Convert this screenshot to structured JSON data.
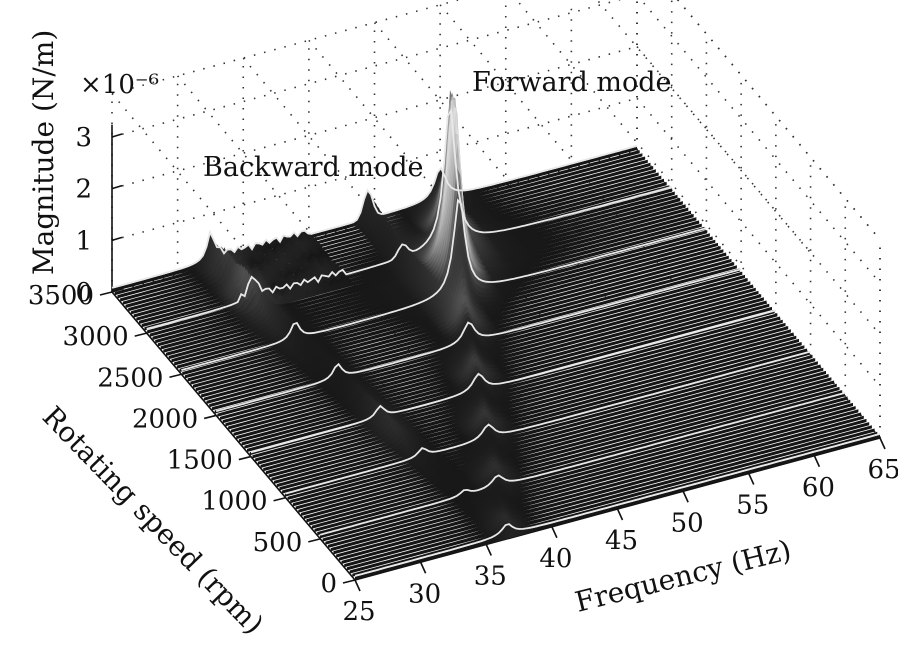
{
  "chart_data": {
    "type": "waterfall-3d-surface",
    "title": "",
    "x_axis": {
      "label": "Frequency (Hz)",
      "range": [
        25,
        65
      ],
      "ticks": [
        "25",
        "30",
        "35",
        "40",
        "45",
        "50",
        "55",
        "60",
        "65"
      ]
    },
    "y_axis": {
      "label": "Rotating speed (rpm)",
      "range": [
        0,
        3500
      ],
      "ticks": [
        "0",
        "500",
        "1000",
        "1500",
        "2000",
        "2500",
        "3000",
        "3500"
      ]
    },
    "z_axis": {
      "label": "Magnitude (N/m)",
      "scale_label": "×10⁻⁶",
      "range": [
        0,
        3
      ],
      "ticks": [
        "0",
        "1",
        "2",
        "3"
      ]
    },
    "annotations": {
      "backward": "Backward mode",
      "forward": "Forward mode"
    },
    "speeds_rpm": [
      0,
      500,
      1000,
      1500,
      2000,
      2500,
      3000,
      3500
    ],
    "modes": {
      "forward": {
        "freq_at_0rpm_hz": 36.6,
        "freq_at_3500rpm_hz": 50.0,
        "peak_magnitude_e6": 3.2
      },
      "backward": {
        "freq_at_0rpm_hz": 36.6,
        "freq_at_3500rpm_hz": 32.5,
        "peak_magnitude_e6": 0.4
      }
    },
    "grid": true,
    "colors": {
      "surface_low": "#0b0b0b",
      "surface_high": "#f2f2f2",
      "slice_line": "#e8e8e8"
    }
  }
}
